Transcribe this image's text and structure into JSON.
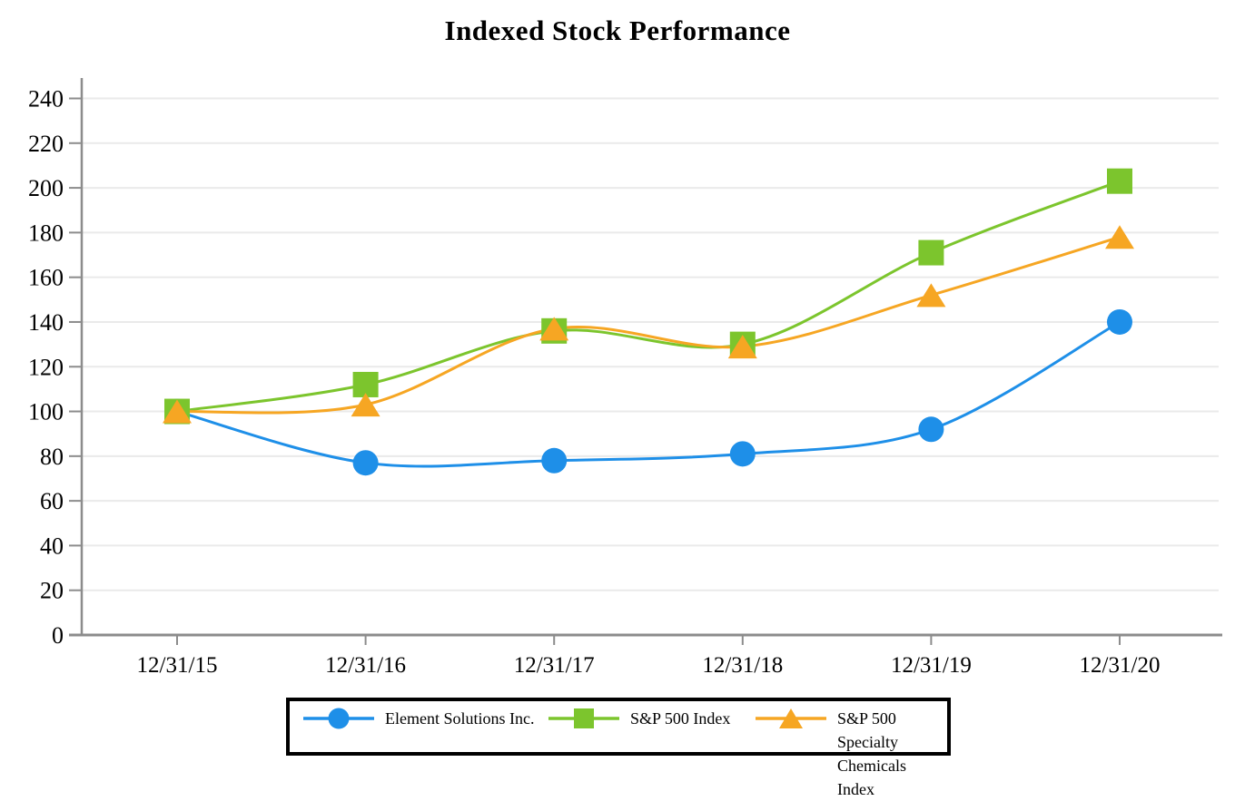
{
  "title": "Indexed Stock Performance",
  "chart_data": {
    "type": "line",
    "title": "Indexed Stock Performance",
    "categories": [
      "12/31/15",
      "12/31/16",
      "12/31/17",
      "12/31/18",
      "12/31/19",
      "12/31/20"
    ],
    "series": [
      {
        "name": "Element Solutions Inc.",
        "marker": "circle",
        "color": "#1E8FE8",
        "values": [
          100,
          77,
          78,
          81,
          92,
          140
        ]
      },
      {
        "name": "S&P 500 Index",
        "marker": "square",
        "color": "#7CC52D",
        "values": [
          100,
          112,
          136,
          130,
          171,
          203
        ]
      },
      {
        "name": "S&P 500 Specialty Chemicals Index",
        "marker": "triangle",
        "color": "#F6A623",
        "values": [
          100,
          103,
          137,
          129,
          152,
          178
        ]
      }
    ],
    "ylim": [
      0,
      240
    ],
    "ytick_step": 20,
    "grid": true,
    "legend_position": "bottom",
    "axis_color": "#8C8C8C",
    "gridline_color": "#EAEAEA",
    "smooth_lines": true
  }
}
